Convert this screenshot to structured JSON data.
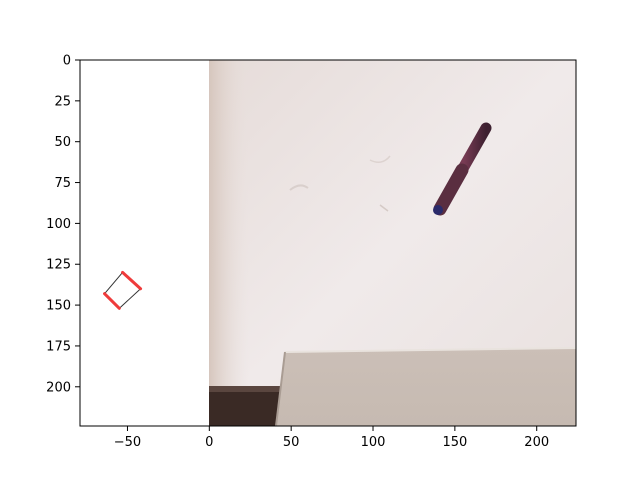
{
  "chart_data": {
    "type": "image-plot",
    "title": "",
    "xlabel": "",
    "ylabel": "",
    "xlim": [
      -79,
      224
    ],
    "ylim": [
      224,
      0
    ],
    "x_ticks": [
      -50,
      0,
      50,
      100,
      150,
      200
    ],
    "x_tick_labels": [
      "−50",
      "0",
      "50",
      "100",
      "150",
      "200"
    ],
    "y_ticks": [
      0,
      25,
      50,
      75,
      100,
      125,
      150,
      175,
      200
    ],
    "y_tick_labels": [
      "0",
      "25",
      "50",
      "75",
      "100",
      "125",
      "150",
      "175",
      "200"
    ],
    "image_extent": {
      "x": [
        0,
        224
      ],
      "y": [
        0,
        224
      ]
    },
    "overlay": {
      "name": "gripper-pose",
      "corners": [
        [
          -53,
          130
        ],
        [
          -42,
          140
        ],
        [
          -55,
          152
        ],
        [
          -64,
          143
        ]
      ],
      "fingers": [
        {
          "from": [
            -53,
            130
          ],
          "to": [
            -42,
            140
          ]
        },
        {
          "from": [
            -64,
            143
          ],
          "to": [
            -55,
            152
          ]
        }
      ],
      "finger_color": "#ef3b3b",
      "edge_color": "#333333"
    }
  }
}
